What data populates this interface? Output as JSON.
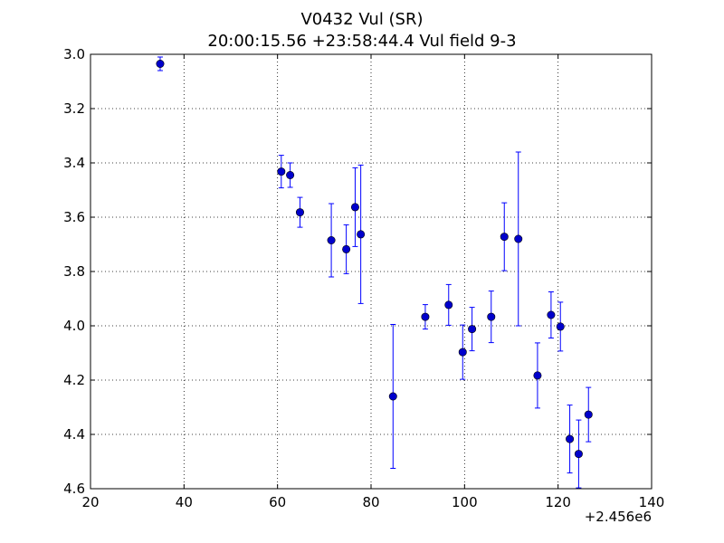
{
  "chart_data": {
    "type": "scatter",
    "title": "V0432 Vul (SR)",
    "subtitle": "20:00:15.56 +23:58:44.4 Vul field 9-3",
    "xlabel": "",
    "ylabel": "",
    "x_offset_label": "+2.456e6",
    "xlim": [
      20,
      140
    ],
    "ylim": [
      3.0,
      4.6
    ],
    "y_inverted": true,
    "grid": true,
    "grid_style": "dotted",
    "x_ticks": [
      20,
      40,
      60,
      80,
      100,
      120,
      140
    ],
    "x_tick_labels": [
      "20",
      "40",
      "60",
      "80",
      "100",
      "120",
      "140"
    ],
    "y_ticks": [
      3.0,
      3.2,
      3.4,
      3.6,
      3.8,
      4.0,
      4.2,
      4.4,
      4.6
    ],
    "y_tick_labels": [
      "3.0",
      "3.2",
      "3.4",
      "3.6",
      "3.8",
      "4.0",
      "4.2",
      "4.4",
      "4.6"
    ],
    "marker_color": "#0000cc",
    "errorbar_color": "#0000ff",
    "points": [
      {
        "x": 34.9,
        "y": 3.035,
        "err": 0.025
      },
      {
        "x": 60.8,
        "y": 3.432,
        "err": 0.06
      },
      {
        "x": 62.7,
        "y": 3.445,
        "err": 0.045
      },
      {
        "x": 64.8,
        "y": 3.582,
        "err": 0.055
      },
      {
        "x": 71.5,
        "y": 3.685,
        "err": 0.135
      },
      {
        "x": 74.7,
        "y": 3.718,
        "err": 0.09
      },
      {
        "x": 76.6,
        "y": 3.563,
        "err": 0.145
      },
      {
        "x": 77.8,
        "y": 3.663,
        "err": 0.255
      },
      {
        "x": 84.7,
        "y": 4.26,
        "err": 0.265
      },
      {
        "x": 91.6,
        "y": 3.967,
        "err": 0.045
      },
      {
        "x": 96.6,
        "y": 3.923,
        "err": 0.075
      },
      {
        "x": 99.6,
        "y": 4.097,
        "err": 0.1
      },
      {
        "x": 101.6,
        "y": 4.012,
        "err": 0.08
      },
      {
        "x": 105.7,
        "y": 3.967,
        "err": 0.095
      },
      {
        "x": 108.5,
        "y": 3.672,
        "err": 0.125
      },
      {
        "x": 111.5,
        "y": 3.68,
        "err": 0.32
      },
      {
        "x": 115.6,
        "y": 4.183,
        "err": 0.12
      },
      {
        "x": 118.5,
        "y": 3.96,
        "err": 0.085
      },
      {
        "x": 120.5,
        "y": 4.003,
        "err": 0.09
      },
      {
        "x": 122.5,
        "y": 4.417,
        "err": 0.125
      },
      {
        "x": 124.4,
        "y": 4.472,
        "err": 0.125
      },
      {
        "x": 126.5,
        "y": 4.327,
        "err": 0.1
      }
    ]
  }
}
